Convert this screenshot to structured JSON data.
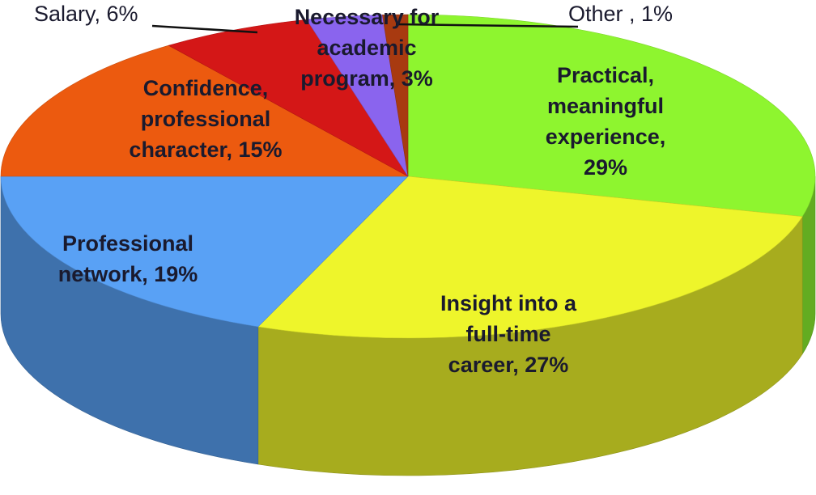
{
  "chart_data": {
    "type": "pie",
    "style": "3d",
    "unit": "%",
    "slices": [
      {
        "label": "Practical, meaningful experience",
        "value": 29,
        "label_lines": [
          "Practical,",
          "meaningful",
          "experience,",
          "29%"
        ],
        "color": "#8ef52f"
      },
      {
        "label": "Insight into a full-time career",
        "value": 27,
        "label_lines": [
          "Insight into a",
          "full-time",
          "career, 27%"
        ],
        "color": "#eef52b"
      },
      {
        "label": "Professional network",
        "value": 19,
        "label_lines": [
          "Professional",
          "network, 19%"
        ],
        "color": "#59a1f5"
      },
      {
        "label": "Confidence, professional character",
        "value": 15,
        "label_lines": [
          "Confidence,",
          "professional",
          "character, 15%"
        ],
        "color": "#ec5a0f"
      },
      {
        "label": "Salary",
        "value": 6,
        "label_lines": [
          "Salary, 6%"
        ],
        "color": "#d41717"
      },
      {
        "label": "Necessary for academic program",
        "value": 3,
        "label_lines": [
          "Necessary for",
          "academic",
          "program, 3%"
        ],
        "color": "#8a64ee"
      },
      {
        "label": "Other",
        "value": 1,
        "label_lines": [
          "Other , 1%"
        ],
        "color": "#a83a10"
      }
    ]
  }
}
